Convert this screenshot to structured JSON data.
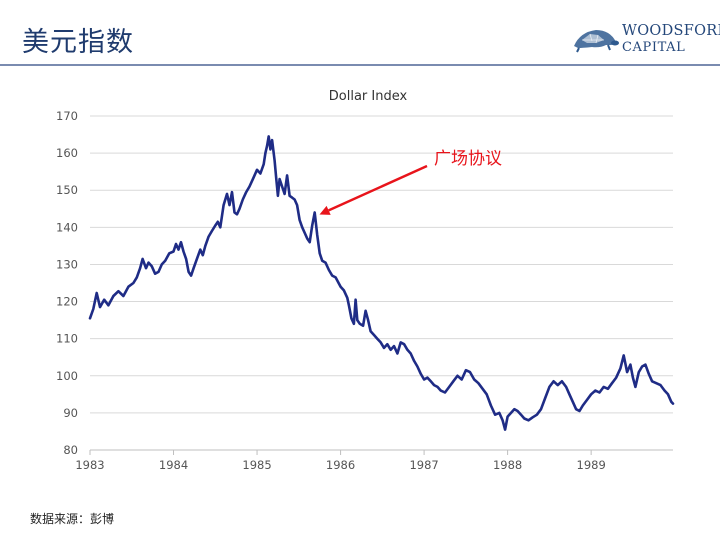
{
  "header": {
    "title": "美元指数",
    "logo_line1": "WOODSFORD",
    "logo_line2": "CAPITAL"
  },
  "colors": {
    "series": "#1f2c86",
    "annotation": "#e8141b",
    "title": "#1f3b6e",
    "grid": "#d9d9d9"
  },
  "footer": {
    "source": "数据来源：彭博"
  },
  "chart_data": {
    "type": "line",
    "title": "Dollar Index",
    "xlabel": "",
    "ylabel": "",
    "ylim": [
      80,
      170
    ],
    "yticks": [
      80,
      90,
      100,
      110,
      120,
      130,
      140,
      150,
      160,
      170
    ],
    "xlim": [
      1983.0,
      1989.98
    ],
    "xticks": [
      1983,
      1984,
      1985,
      1986,
      1987,
      1988,
      1989
    ],
    "grid": "horizontal",
    "legend": "none",
    "annotation": {
      "text": "广场协议",
      "x": 1985.7,
      "y": 144
    },
    "series": [
      {
        "name": "",
        "points": [
          [
            1983.0,
            115.5
          ],
          [
            1983.04,
            118
          ],
          [
            1983.08,
            122.3
          ],
          [
            1983.12,
            118.5
          ],
          [
            1983.17,
            120.5
          ],
          [
            1983.22,
            119
          ],
          [
            1983.28,
            121.5
          ],
          [
            1983.34,
            122.8
          ],
          [
            1983.4,
            121.5
          ],
          [
            1983.46,
            124
          ],
          [
            1983.52,
            125
          ],
          [
            1983.56,
            126.5
          ],
          [
            1983.6,
            129
          ],
          [
            1983.63,
            131.5
          ],
          [
            1983.67,
            129
          ],
          [
            1983.7,
            130.5
          ],
          [
            1983.74,
            129.5
          ],
          [
            1983.78,
            127.5
          ],
          [
            1983.82,
            128
          ],
          [
            1983.86,
            130
          ],
          [
            1983.9,
            131
          ],
          [
            1983.95,
            133
          ],
          [
            1984.0,
            133.5
          ],
          [
            1984.03,
            135.5
          ],
          [
            1984.06,
            134
          ],
          [
            1984.09,
            136
          ],
          [
            1984.12,
            133.5
          ],
          [
            1984.15,
            131.5
          ],
          [
            1984.18,
            128
          ],
          [
            1984.21,
            127
          ],
          [
            1984.24,
            129
          ],
          [
            1984.28,
            131.5
          ],
          [
            1984.32,
            134
          ],
          [
            1984.35,
            132.5
          ],
          [
            1984.38,
            135
          ],
          [
            1984.42,
            137.5
          ],
          [
            1984.46,
            139
          ],
          [
            1984.5,
            140.5
          ],
          [
            1984.53,
            141.5
          ],
          [
            1984.56,
            140
          ],
          [
            1984.6,
            146
          ],
          [
            1984.64,
            149
          ],
          [
            1984.67,
            146
          ],
          [
            1984.7,
            149.5
          ],
          [
            1984.73,
            144
          ],
          [
            1984.76,
            143.5
          ],
          [
            1984.79,
            145
          ],
          [
            1984.83,
            147.5
          ],
          [
            1984.87,
            149.5
          ],
          [
            1984.91,
            151
          ],
          [
            1984.95,
            153
          ],
          [
            1985.0,
            155.5
          ],
          [
            1985.04,
            154.5
          ],
          [
            1985.08,
            157
          ],
          [
            1985.1,
            160
          ],
          [
            1985.12,
            162
          ],
          [
            1985.14,
            164.5
          ],
          [
            1985.16,
            161
          ],
          [
            1985.18,
            163.5
          ],
          [
            1985.21,
            158
          ],
          [
            1985.23,
            153
          ],
          [
            1985.25,
            148.5
          ],
          [
            1985.27,
            153
          ],
          [
            1985.3,
            151
          ],
          [
            1985.33,
            149
          ],
          [
            1985.36,
            154
          ],
          [
            1985.39,
            148.5
          ],
          [
            1985.42,
            148
          ],
          [
            1985.45,
            147.5
          ],
          [
            1985.48,
            146
          ],
          [
            1985.51,
            142
          ],
          [
            1985.54,
            140
          ],
          [
            1985.57,
            138.5
          ],
          [
            1985.6,
            137
          ],
          [
            1985.63,
            136
          ],
          [
            1985.66,
            140.5
          ],
          [
            1985.69,
            144
          ],
          [
            1985.72,
            138
          ],
          [
            1985.75,
            133
          ],
          [
            1985.78,
            131
          ],
          [
            1985.82,
            130.5
          ],
          [
            1985.86,
            128.5
          ],
          [
            1985.9,
            127
          ],
          [
            1985.94,
            126.5
          ],
          [
            1986.0,
            124
          ],
          [
            1986.04,
            123
          ],
          [
            1986.08,
            121
          ],
          [
            1986.1,
            119
          ],
          [
            1986.13,
            115.5
          ],
          [
            1986.16,
            114
          ],
          [
            1986.18,
            120.5
          ],
          [
            1986.2,
            115
          ],
          [
            1986.23,
            114
          ],
          [
            1986.27,
            113.5
          ],
          [
            1986.3,
            117.5
          ],
          [
            1986.33,
            115
          ],
          [
            1986.36,
            112
          ],
          [
            1986.4,
            111
          ],
          [
            1986.44,
            110
          ],
          [
            1986.48,
            109
          ],
          [
            1986.52,
            107.5
          ],
          [
            1986.56,
            108.5
          ],
          [
            1986.6,
            107
          ],
          [
            1986.64,
            108
          ],
          [
            1986.68,
            106
          ],
          [
            1986.72,
            109
          ],
          [
            1986.76,
            108.5
          ],
          [
            1986.8,
            107
          ],
          [
            1986.84,
            106
          ],
          [
            1986.88,
            104
          ],
          [
            1986.92,
            102.5
          ],
          [
            1986.96,
            100.5
          ],
          [
            1987.0,
            99
          ],
          [
            1987.04,
            99.5
          ],
          [
            1987.08,
            98.5
          ],
          [
            1987.12,
            97.5
          ],
          [
            1987.16,
            97
          ],
          [
            1987.2,
            96
          ],
          [
            1987.25,
            95.5
          ],
          [
            1987.3,
            97
          ],
          [
            1987.35,
            98.5
          ],
          [
            1987.4,
            100
          ],
          [
            1987.45,
            99
          ],
          [
            1987.5,
            101.5
          ],
          [
            1987.55,
            101
          ],
          [
            1987.6,
            99
          ],
          [
            1987.65,
            98
          ],
          [
            1987.7,
            96.5
          ],
          [
            1987.75,
            95
          ],
          [
            1987.8,
            92
          ],
          [
            1987.85,
            89.5
          ],
          [
            1987.9,
            90
          ],
          [
            1987.94,
            88
          ],
          [
            1987.97,
            85.5
          ],
          [
            1988.0,
            89
          ],
          [
            1988.04,
            90
          ],
          [
            1988.08,
            91
          ],
          [
            1988.12,
            90.5
          ],
          [
            1988.16,
            89.5
          ],
          [
            1988.2,
            88.5
          ],
          [
            1988.25,
            88
          ],
          [
            1988.3,
            88.8
          ],
          [
            1988.35,
            89.5
          ],
          [
            1988.4,
            91
          ],
          [
            1988.45,
            94
          ],
          [
            1988.5,
            97
          ],
          [
            1988.55,
            98.5
          ],
          [
            1988.6,
            97.5
          ],
          [
            1988.65,
            98.5
          ],
          [
            1988.7,
            97
          ],
          [
            1988.74,
            95
          ],
          [
            1988.78,
            93
          ],
          [
            1988.82,
            91
          ],
          [
            1988.86,
            90.5
          ],
          [
            1988.9,
            92
          ],
          [
            1988.95,
            93.5
          ],
          [
            1989.0,
            95
          ],
          [
            1989.05,
            96
          ],
          [
            1989.1,
            95.5
          ],
          [
            1989.15,
            97
          ],
          [
            1989.2,
            96.5
          ],
          [
            1989.25,
            98
          ],
          [
            1989.3,
            99.5
          ],
          [
            1989.35,
            102
          ],
          [
            1989.39,
            105.5
          ],
          [
            1989.43,
            101
          ],
          [
            1989.47,
            103
          ],
          [
            1989.5,
            99.5
          ],
          [
            1989.53,
            97
          ],
          [
            1989.57,
            101
          ],
          [
            1989.61,
            102.5
          ],
          [
            1989.65,
            103
          ],
          [
            1989.69,
            100.5
          ],
          [
            1989.73,
            98.5
          ],
          [
            1989.78,
            98
          ],
          [
            1989.83,
            97.5
          ],
          [
            1989.88,
            96
          ],
          [
            1989.92,
            95
          ],
          [
            1989.96,
            93
          ],
          [
            1989.98,
            92.5
          ]
        ]
      }
    ]
  }
}
